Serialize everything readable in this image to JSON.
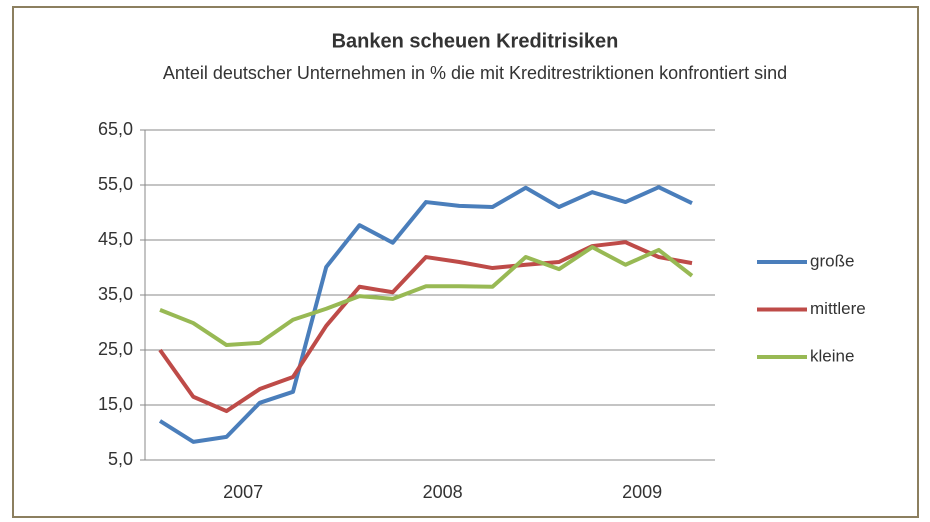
{
  "chart_data": {
    "type": "line",
    "title": "Banken scheuen Kreditrisiken",
    "subtitle": "Anteil deutscher Unternehmen in % die mit Kreditrestriktionen konfrontiert sind",
    "categories": [
      null,
      null,
      "2007",
      null,
      null,
      null,
      null,
      null,
      "2008",
      null,
      null,
      null,
      null,
      null,
      "2009",
      null,
      null
    ],
    "series": [
      {
        "name": "große",
        "color": "#4a7ebb",
        "values": [
          12.1,
          8.3,
          9.2,
          15.4,
          17.4,
          40.1,
          47.7,
          44.5,
          51.9,
          51.2,
          51.0,
          54.5,
          51.0,
          53.7,
          51.9,
          54.6,
          51.7
        ]
      },
      {
        "name": "mittlere",
        "color": "#be4b48",
        "values": [
          25.0,
          16.5,
          13.9,
          17.9,
          20.1,
          29.4,
          36.5,
          35.5,
          41.9,
          41.0,
          39.9,
          40.5,
          41.0,
          43.9,
          44.6,
          41.9,
          40.8
        ]
      },
      {
        "name": "kleine",
        "color": "#98b954",
        "values": [
          32.3,
          29.9,
          25.9,
          26.3,
          30.5,
          32.5,
          34.8,
          34.3,
          36.6,
          36.6,
          36.5,
          41.9,
          39.7,
          43.7,
          40.5,
          43.2,
          38.5
        ]
      }
    ],
    "ylim": [
      5,
      65
    ],
    "yticks": [
      {
        "value": 5,
        "label": "5,0"
      },
      {
        "value": 15,
        "label": "15,0"
      },
      {
        "value": 25,
        "label": "25,0"
      },
      {
        "value": 35,
        "label": "35,0"
      },
      {
        "value": 45,
        "label": "45,0"
      },
      {
        "value": 55,
        "label": "55,0"
      },
      {
        "value": 65,
        "label": "65,0"
      }
    ],
    "grid": true,
    "legend": "right"
  }
}
